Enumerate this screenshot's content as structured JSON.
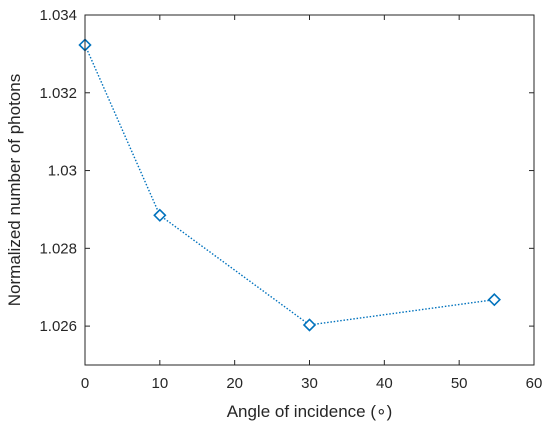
{
  "chart_data": {
    "type": "line",
    "title": "",
    "xlabel": "Angle of incidence (∘)",
    "ylabel": "Normalized number of photons",
    "xlim": [
      0,
      60
    ],
    "ylim": [
      1.025,
      1.034
    ],
    "xticks": [
      0,
      10,
      20,
      30,
      40,
      50,
      60
    ],
    "xtick_labels": [
      "0",
      "10",
      "20",
      "30",
      "40",
      "50",
      "60"
    ],
    "yticks": [
      1.026,
      1.028,
      1.03,
      1.032,
      1.034
    ],
    "ytick_labels": [
      "1.026",
      "1.028",
      "1.03",
      "1.032",
      "1.034"
    ],
    "grid": false,
    "series": [
      {
        "x": [
          0,
          10,
          30,
          54.7
        ],
        "y": [
          1.03323,
          1.02885,
          1.02603,
          1.02668
        ],
        "color": "#0072BD",
        "line_style": "dotted",
        "marker": "diamond"
      }
    ]
  }
}
